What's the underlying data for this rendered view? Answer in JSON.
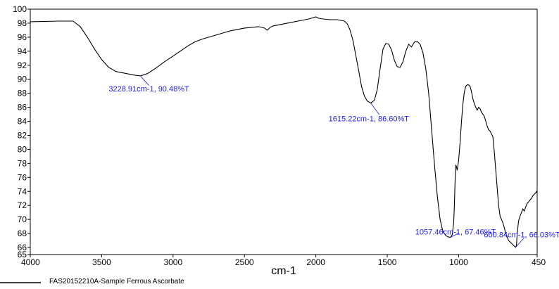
{
  "chart_data": {
    "type": "line",
    "xlabel": "cm-1",
    "ylabel": "",
    "xlim": [
      4000,
      450
    ],
    "ylim": [
      65,
      100
    ],
    "x_ticks": [
      4000,
      3500,
      3000,
      2500,
      2000,
      1500,
      1000,
      450
    ],
    "y_ticks": [
      66,
      68,
      70,
      72,
      74,
      76,
      78,
      80,
      82,
      84,
      86,
      88,
      90,
      92,
      94,
      96,
      98,
      100
    ],
    "y_ticks_extra": [
      65
    ],
    "grid": false,
    "colors": {
      "line": "#000000",
      "annotation": "#1a1aff"
    },
    "series": [
      {
        "name": "FAS20152210A-Sample",
        "x": [
          4000,
          3800,
          3700,
          3650,
          3600,
          3550,
          3500,
          3450,
          3400,
          3350,
          3300,
          3260,
          3228.91,
          3180,
          3120,
          3060,
          3000,
          2950,
          2900,
          2850,
          2800,
          2700,
          2600,
          2500,
          2400,
          2360,
          2340,
          2320,
          2300,
          2200,
          2100,
          2050,
          2000,
          1980,
          1950,
          1900,
          1850,
          1800,
          1780,
          1760,
          1740,
          1720,
          1700,
          1680,
          1660,
          1640,
          1615.22,
          1590,
          1570,
          1550,
          1530,
          1510,
          1490,
          1470,
          1450,
          1430,
          1410,
          1390,
          1370,
          1350,
          1330,
          1310,
          1290,
          1270,
          1250,
          1230,
          1210,
          1190,
          1170,
          1150,
          1130,
          1110,
          1090,
          1070,
          1057.46,
          1045,
          1035,
          1030,
          1025,
          1020,
          1015,
          1010,
          1000,
          990,
          980,
          970,
          960,
          950,
          940,
          930,
          920,
          910,
          900,
          890,
          880,
          870,
          860,
          850,
          840,
          830,
          820,
          810,
          800,
          790,
          780,
          770,
          760,
          750,
          740,
          730,
          720,
          710,
          700,
          690,
          680,
          670,
          660,
          650,
          640,
          630,
          620,
          610,
          600.84,
          595,
          590,
          580,
          570,
          560,
          550,
          540,
          530,
          520,
          510,
          500,
          490,
          480,
          470,
          460,
          455,
          450
        ],
        "y": [
          98.2,
          98.3,
          98.3,
          97.5,
          96,
          94.3,
          92.8,
          91.7,
          91.1,
          90.9,
          90.7,
          90.55,
          90.48,
          90.8,
          91.6,
          92.5,
          93.3,
          94,
          94.7,
          95.3,
          95.7,
          96.3,
          96.9,
          97.3,
          97.5,
          97.3,
          97,
          97.4,
          97.6,
          98.0,
          98.4,
          98.6,
          98.9,
          98.7,
          98.6,
          98.5,
          98.5,
          98.3,
          97.9,
          97.0,
          95.5,
          93.4,
          91.2,
          89.0,
          87.6,
          86.9,
          86.6,
          87.0,
          88.5,
          91.5,
          94.3,
          95.1,
          95.0,
          94.2,
          92.7,
          91.8,
          91.7,
          92.5,
          94.0,
          95.0,
          94.6,
          95.3,
          95.4,
          95.0,
          93.8,
          91.5,
          88.0,
          83.0,
          78.0,
          73.5,
          70.0,
          68.3,
          67.7,
          67.5,
          67.46,
          67.8,
          69.5,
          72.0,
          75.5,
          77.8,
          77.5,
          77.0,
          78.5,
          81.0,
          84.0,
          86.5,
          88.2,
          89.0,
          89.2,
          89.2,
          89.0,
          88.2,
          87.2,
          86.5,
          86.0,
          85.6,
          86.0,
          85.8,
          85.3,
          85.0,
          84.7,
          84.0,
          83.3,
          82.8,
          82.6,
          82.2,
          81.8,
          79.5,
          77.0,
          74.5,
          72.0,
          70.5,
          70.0,
          69.5,
          68.8,
          68.0,
          67.5,
          67.0,
          66.8,
          66.6,
          66.4,
          66.2,
          66.03,
          66.3,
          68.0,
          69.8,
          70.5,
          71.0,
          71.5,
          71.2,
          71.8,
          72.3,
          72.5,
          72.8,
          73.0,
          73.4,
          73.6,
          73.8,
          74.0,
          73.8
        ]
      }
    ],
    "annotations": [
      {
        "label": "3228.91cm-1, 90.48%T",
        "x": 3228.91,
        "y": 90.48
      },
      {
        "label": "1615.22cm-1, 86.60%T",
        "x": 1615.22,
        "y": 86.6
      },
      {
        "label": "1057.46cm-1, 67.46%T",
        "x": 1057.46,
        "y": 67.46
      },
      {
        "label": "600.84cm-1, 66.03%T",
        "x": 600.84,
        "y": 66.03
      }
    ]
  },
  "legend": {
    "sample_name": "FAS20152210A-Sample",
    "description": "Ferrous Ascorbate"
  }
}
